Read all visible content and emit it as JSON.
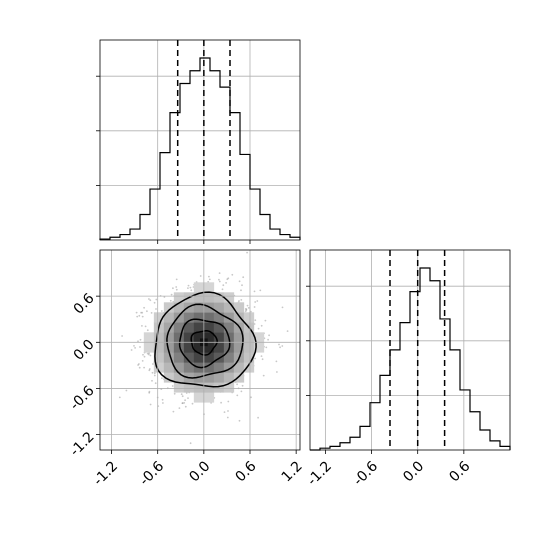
{
  "chart_data": [
    {
      "type": "histogram",
      "panel": "top-left",
      "variable_index": 0,
      "x_range": [
        -1.35,
        1.25
      ],
      "bin_edges": [
        -1.35,
        -1.22,
        -1.09,
        -0.96,
        -0.83,
        -0.7,
        -0.57,
        -0.44,
        -0.31,
        -0.18,
        -0.05,
        0.08,
        0.21,
        0.34,
        0.47,
        0.6,
        0.73,
        0.86,
        0.99,
        1.12,
        1.25
      ],
      "counts": [
        0.005,
        0.015,
        0.03,
        0.06,
        0.14,
        0.28,
        0.48,
        0.7,
        0.86,
        0.93,
        1.0,
        0.93,
        0.84,
        0.7,
        0.47,
        0.28,
        0.14,
        0.06,
        0.03,
        0.015
      ],
      "quantile_lines": [
        -0.34,
        0.0,
        0.34
      ],
      "xticks": [],
      "yticks": [],
      "grid": true
    },
    {
      "type": "scatter-density-contour",
      "panel": "bottom-left",
      "x_range": [
        -1.35,
        1.25
      ],
      "y_range": [
        -1.4,
        1.2
      ],
      "xticks": [
        "-1.2",
        "-0.6",
        "0.0",
        "0.6",
        "1.2"
      ],
      "xtick_values": [
        -1.2,
        -0.6,
        0.0,
        0.6,
        1.2
      ],
      "yticks": [
        "-1.2",
        "-0.6",
        "0.0",
        "0.6"
      ],
      "ytick_values": [
        -1.2,
        -0.6,
        0.0,
        0.6
      ],
      "center": [
        0.0,
        0.0
      ],
      "sigma": [
        0.34,
        0.34
      ],
      "contour_levels": [
        0.12,
        0.39,
        0.68,
        0.86
      ],
      "grid": true
    },
    {
      "type": "histogram",
      "panel": "bottom-right",
      "variable_index": 1,
      "x_range": [
        -1.4,
        1.2
      ],
      "bin_edges": [
        -1.4,
        -1.27,
        -1.14,
        -1.01,
        -0.88,
        -0.75,
        -0.62,
        -0.49,
        -0.36,
        -0.23,
        -0.1,
        0.03,
        0.16,
        0.29,
        0.42,
        0.55,
        0.68,
        0.81,
        0.94,
        1.07,
        1.2
      ],
      "counts": [
        0.0,
        0.01,
        0.02,
        0.04,
        0.07,
        0.13,
        0.26,
        0.41,
        0.55,
        0.7,
        0.87,
        1.0,
        0.93,
        0.72,
        0.55,
        0.33,
        0.21,
        0.11,
        0.05,
        0.02
      ],
      "quantile_lines": [
        -0.36,
        0.0,
        0.35
      ],
      "xticks": [
        "-1.2",
        "-0.6",
        "0.0",
        "0.6"
      ],
      "xtick_values": [
        -1.2,
        -0.6,
        0.0,
        0.6
      ],
      "yticks": [],
      "grid": true
    }
  ]
}
